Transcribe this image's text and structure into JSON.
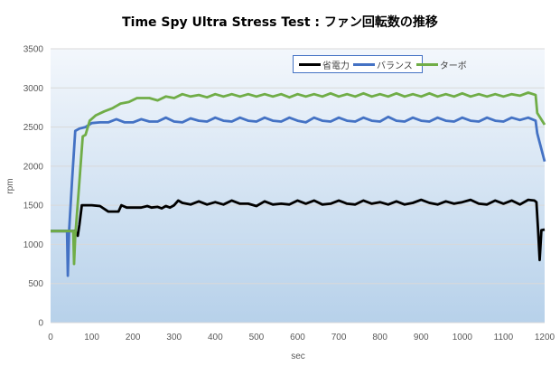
{
  "chart_data": {
    "type": "line",
    "title": "Time Spy Ultra Stress Test : ファン回転数の推移",
    "xlabel": "sec",
    "ylabel": "rpm",
    "xlim": [
      0,
      1200
    ],
    "ylim": [
      0,
      3500
    ],
    "xticks": [
      0,
      100,
      200,
      300,
      400,
      500,
      600,
      700,
      800,
      900,
      1000,
      1100,
      1200
    ],
    "yticks": [
      0,
      500,
      1000,
      1500,
      2000,
      2500,
      3000,
      3500
    ],
    "grid": true,
    "legend": "top-right",
    "series": [
      {
        "name": "省電力",
        "color": "#000000",
        "points": [
          [
            0,
            1170
          ],
          [
            58,
            1170
          ],
          [
            62,
            1150
          ],
          [
            66,
            1110
          ],
          [
            70,
            1250
          ],
          [
            76,
            1500
          ],
          [
            100,
            1500
          ],
          [
            120,
            1490
          ],
          [
            140,
            1420
          ],
          [
            165,
            1420
          ],
          [
            172,
            1500
          ],
          [
            185,
            1470
          ],
          [
            220,
            1470
          ],
          [
            235,
            1490
          ],
          [
            245,
            1470
          ],
          [
            260,
            1480
          ],
          [
            270,
            1460
          ],
          [
            280,
            1490
          ],
          [
            290,
            1470
          ],
          [
            300,
            1500
          ],
          [
            310,
            1560
          ],
          [
            320,
            1530
          ],
          [
            340,
            1510
          ],
          [
            360,
            1550
          ],
          [
            380,
            1510
          ],
          [
            400,
            1540
          ],
          [
            420,
            1510
          ],
          [
            440,
            1560
          ],
          [
            460,
            1520
          ],
          [
            480,
            1520
          ],
          [
            500,
            1490
          ],
          [
            520,
            1550
          ],
          [
            540,
            1510
          ],
          [
            560,
            1520
          ],
          [
            580,
            1510
          ],
          [
            600,
            1560
          ],
          [
            620,
            1520
          ],
          [
            640,
            1560
          ],
          [
            660,
            1510
          ],
          [
            680,
            1520
          ],
          [
            700,
            1560
          ],
          [
            720,
            1520
          ],
          [
            740,
            1510
          ],
          [
            760,
            1560
          ],
          [
            780,
            1520
          ],
          [
            800,
            1540
          ],
          [
            820,
            1510
          ],
          [
            840,
            1550
          ],
          [
            860,
            1510
          ],
          [
            880,
            1530
          ],
          [
            900,
            1570
          ],
          [
            920,
            1530
          ],
          [
            940,
            1510
          ],
          [
            960,
            1550
          ],
          [
            980,
            1520
          ],
          [
            1000,
            1540
          ],
          [
            1020,
            1570
          ],
          [
            1040,
            1520
          ],
          [
            1060,
            1510
          ],
          [
            1080,
            1560
          ],
          [
            1100,
            1520
          ],
          [
            1120,
            1560
          ],
          [
            1140,
            1510
          ],
          [
            1160,
            1570
          ],
          [
            1175,
            1560
          ],
          [
            1180,
            1540
          ],
          [
            1184,
            1190
          ],
          [
            1188,
            800
          ],
          [
            1192,
            1180
          ],
          [
            1200,
            1190
          ]
        ]
      },
      {
        "name": "バランス",
        "color": "#4472c4",
        "points": [
          [
            0,
            1170
          ],
          [
            40,
            1170
          ],
          [
            42,
            600
          ],
          [
            45,
            1170
          ],
          [
            52,
            1800
          ],
          [
            60,
            2450
          ],
          [
            70,
            2480
          ],
          [
            85,
            2500
          ],
          [
            100,
            2550
          ],
          [
            120,
            2560
          ],
          [
            140,
            2560
          ],
          [
            160,
            2600
          ],
          [
            180,
            2560
          ],
          [
            200,
            2560
          ],
          [
            220,
            2600
          ],
          [
            240,
            2570
          ],
          [
            260,
            2570
          ],
          [
            280,
            2620
          ],
          [
            300,
            2570
          ],
          [
            320,
            2560
          ],
          [
            340,
            2610
          ],
          [
            360,
            2580
          ],
          [
            380,
            2570
          ],
          [
            400,
            2620
          ],
          [
            420,
            2580
          ],
          [
            440,
            2570
          ],
          [
            460,
            2620
          ],
          [
            480,
            2580
          ],
          [
            500,
            2570
          ],
          [
            520,
            2620
          ],
          [
            540,
            2580
          ],
          [
            560,
            2570
          ],
          [
            580,
            2620
          ],
          [
            600,
            2580
          ],
          [
            620,
            2560
          ],
          [
            640,
            2620
          ],
          [
            660,
            2580
          ],
          [
            680,
            2570
          ],
          [
            700,
            2620
          ],
          [
            720,
            2580
          ],
          [
            740,
            2570
          ],
          [
            760,
            2620
          ],
          [
            780,
            2580
          ],
          [
            800,
            2570
          ],
          [
            820,
            2630
          ],
          [
            840,
            2580
          ],
          [
            860,
            2570
          ],
          [
            880,
            2620
          ],
          [
            900,
            2580
          ],
          [
            920,
            2570
          ],
          [
            940,
            2620
          ],
          [
            960,
            2580
          ],
          [
            980,
            2570
          ],
          [
            1000,
            2620
          ],
          [
            1020,
            2580
          ],
          [
            1040,
            2570
          ],
          [
            1060,
            2620
          ],
          [
            1080,
            2580
          ],
          [
            1100,
            2570
          ],
          [
            1120,
            2620
          ],
          [
            1140,
            2590
          ],
          [
            1160,
            2620
          ],
          [
            1178,
            2580
          ],
          [
            1182,
            2420
          ],
          [
            1200,
            2060
          ]
        ]
      },
      {
        "name": "ターボ",
        "color": "#70ad47",
        "points": [
          [
            0,
            1170
          ],
          [
            55,
            1170
          ],
          [
            57,
            750
          ],
          [
            60,
            1100
          ],
          [
            70,
            1800
          ],
          [
            78,
            2380
          ],
          [
            85,
            2400
          ],
          [
            95,
            2580
          ],
          [
            110,
            2650
          ],
          [
            130,
            2700
          ],
          [
            150,
            2740
          ],
          [
            170,
            2800
          ],
          [
            190,
            2820
          ],
          [
            210,
            2870
          ],
          [
            240,
            2870
          ],
          [
            260,
            2840
          ],
          [
            280,
            2890
          ],
          [
            300,
            2870
          ],
          [
            320,
            2920
          ],
          [
            340,
            2890
          ],
          [
            360,
            2910
          ],
          [
            380,
            2880
          ],
          [
            400,
            2920
          ],
          [
            420,
            2890
          ],
          [
            440,
            2920
          ],
          [
            460,
            2890
          ],
          [
            480,
            2920
          ],
          [
            500,
            2890
          ],
          [
            520,
            2920
          ],
          [
            540,
            2890
          ],
          [
            560,
            2920
          ],
          [
            580,
            2880
          ],
          [
            600,
            2920
          ],
          [
            620,
            2890
          ],
          [
            640,
            2920
          ],
          [
            660,
            2890
          ],
          [
            680,
            2930
          ],
          [
            700,
            2890
          ],
          [
            720,
            2920
          ],
          [
            740,
            2890
          ],
          [
            760,
            2930
          ],
          [
            780,
            2890
          ],
          [
            800,
            2920
          ],
          [
            820,
            2890
          ],
          [
            840,
            2930
          ],
          [
            860,
            2890
          ],
          [
            880,
            2920
          ],
          [
            900,
            2890
          ],
          [
            920,
            2930
          ],
          [
            940,
            2890
          ],
          [
            960,
            2920
          ],
          [
            980,
            2890
          ],
          [
            1000,
            2930
          ],
          [
            1020,
            2890
          ],
          [
            1040,
            2920
          ],
          [
            1060,
            2890
          ],
          [
            1080,
            2920
          ],
          [
            1100,
            2890
          ],
          [
            1120,
            2920
          ],
          [
            1140,
            2900
          ],
          [
            1160,
            2940
          ],
          [
            1178,
            2910
          ],
          [
            1182,
            2680
          ],
          [
            1200,
            2530
          ]
        ]
      }
    ]
  }
}
